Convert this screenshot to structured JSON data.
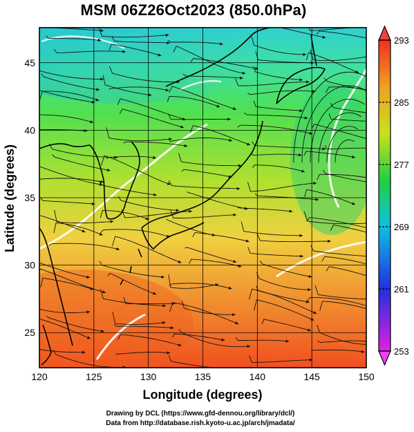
{
  "title": "MSM 06Z26Oct2023 (850.0hPa)",
  "map": {
    "type": "streamline-temperature",
    "xlabel": "Longitude (degrees)",
    "ylabel": "Latitude  (degrees)",
    "xlim": [
      120,
      150
    ],
    "ylim": [
      22.4,
      47.6
    ],
    "x_ticks": [
      "120",
      "125",
      "130",
      "135",
      "140",
      "145",
      "150"
    ],
    "y_ticks": [
      "25",
      "30",
      "35",
      "40",
      "45"
    ],
    "grid": true
  },
  "colorbar": {
    "min": 253,
    "max": 293,
    "labels": [
      "293",
      "285",
      "277",
      "269",
      "261",
      "253"
    ],
    "palette": [
      "#e020e0",
      "#2030e0",
      "#10c0e0",
      "#20d040",
      "#c8e020",
      "#f0a020",
      "#f03020"
    ]
  },
  "credits": {
    "line1": "Drawing by DCL (https://www.gfd-dennou.org/library/dcl/)",
    "line2": "Data from http://database.rish.kyoto-u.ac.jp/arch/jmadata/"
  }
}
